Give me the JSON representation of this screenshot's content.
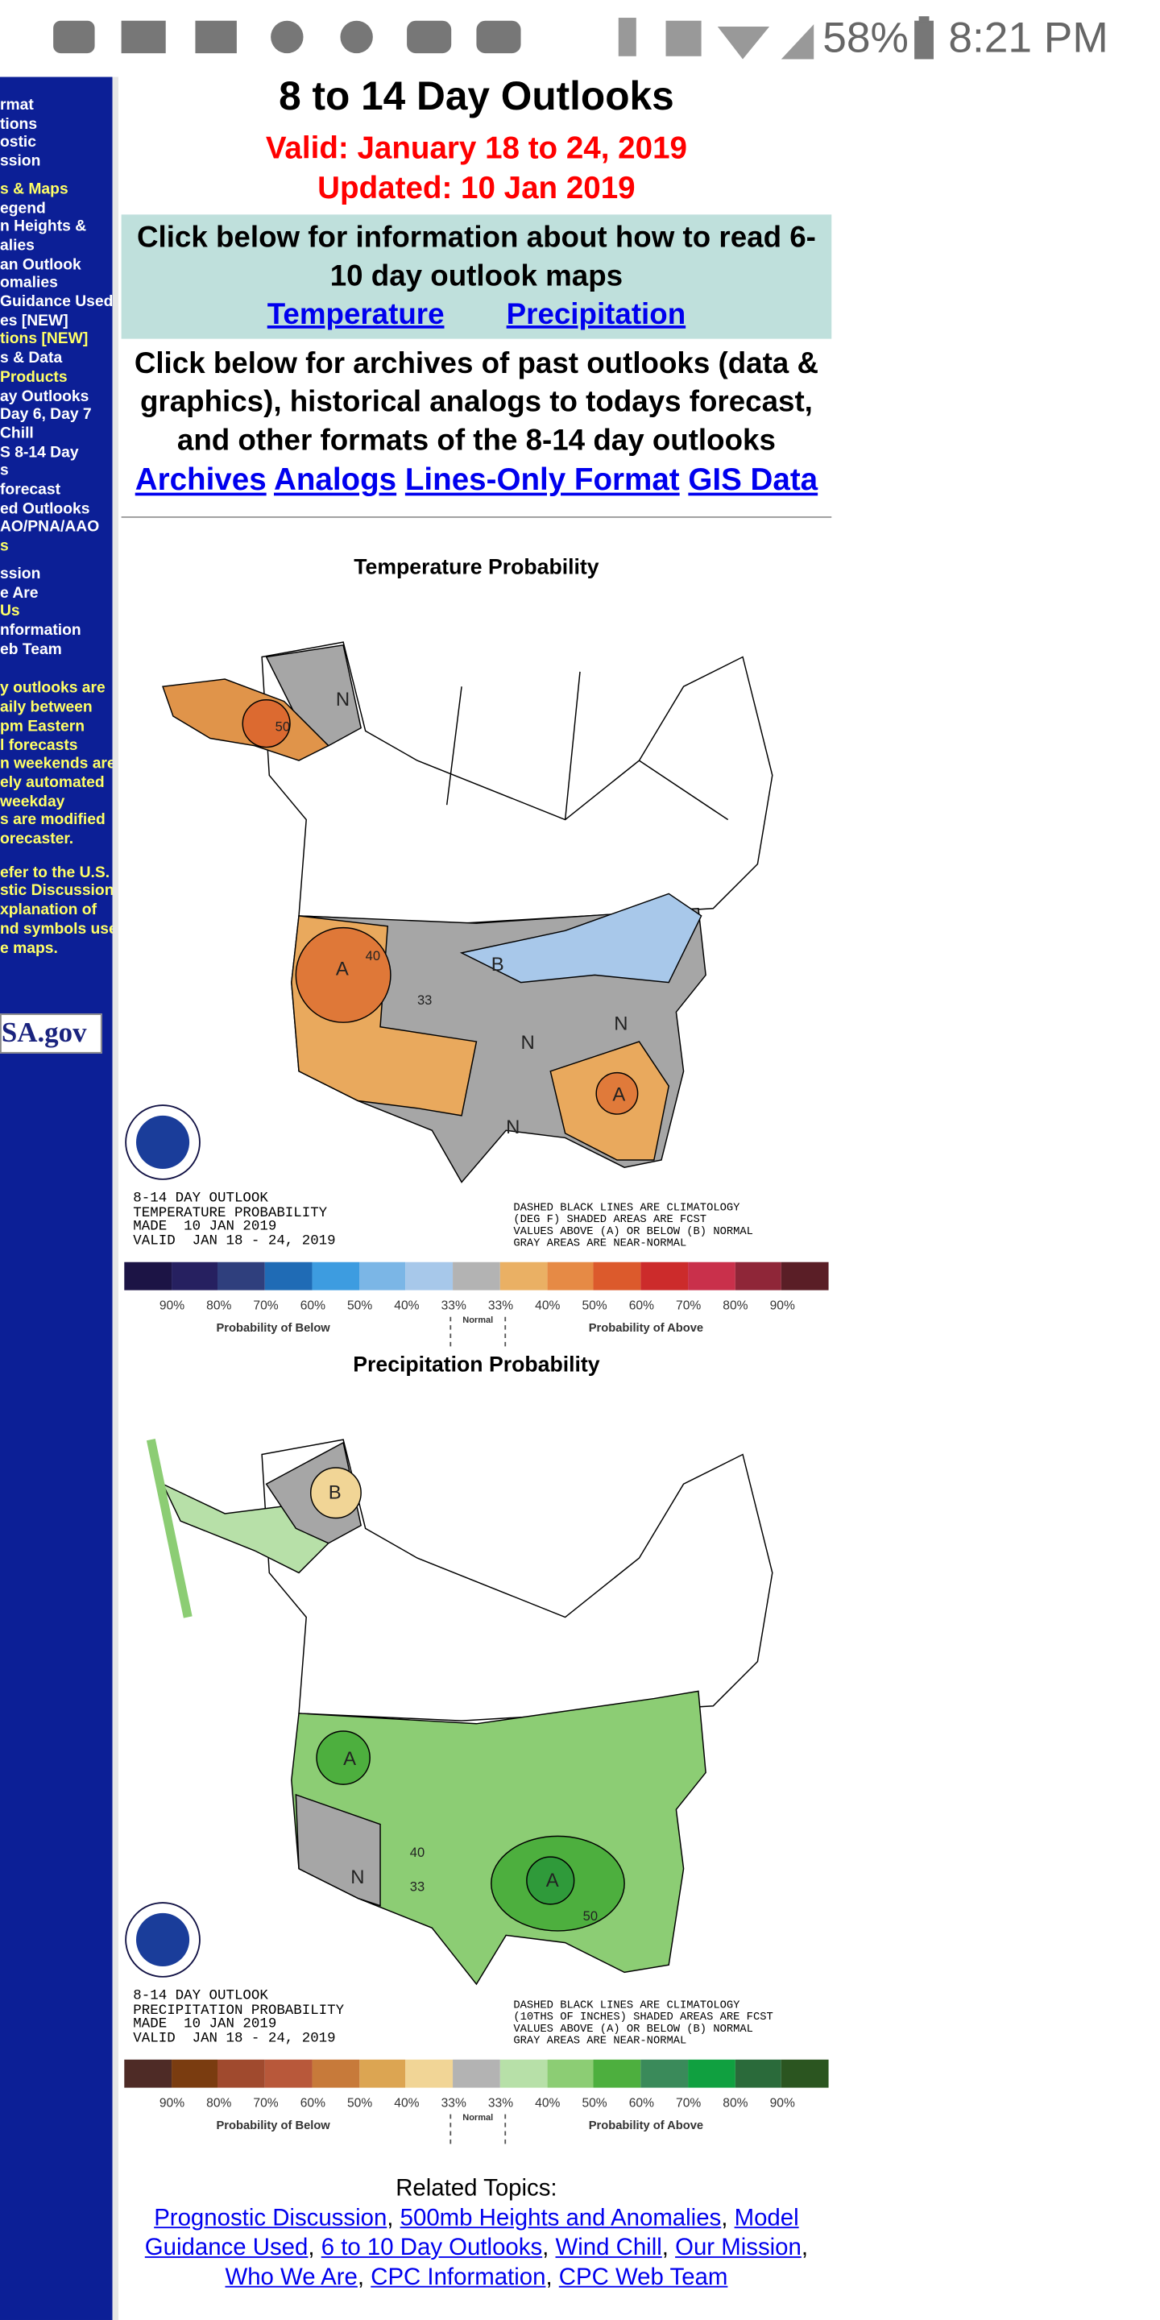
{
  "status_bar": {
    "battery": "58%",
    "time": "8:21 PM"
  },
  "sidebar": {
    "groups": [
      {
        "color": "#ffffff",
        "lines": [
          "rmat",
          "tions",
          "ostic",
          "ssion"
        ]
      },
      {
        "color": "#ffff66",
        "lines": [
          "s & Maps"
        ]
      },
      {
        "color": "#ffffff",
        "lines": [
          "egend",
          "n Heights &",
          "alies",
          "an Outlook",
          "omalies",
          "Guidance Used",
          "es [NEW]"
        ]
      },
      {
        "color": "#ffff66",
        "lines": [
          "tions [NEW]"
        ]
      },
      {
        "color": "#ffffff",
        "lines": [
          "s & Data"
        ]
      },
      {
        "color": "#ffff66",
        "lines": [
          "Products"
        ]
      },
      {
        "color": "#ffffff",
        "lines": [
          "ay Outlooks",
          "Day 6, Day 7",
          "Chill",
          "S 8-14 Day",
          "s",
          "forecast",
          "ed Outlooks",
          "AO/PNA/AAO"
        ]
      },
      {
        "color": "#ffff66",
        "lines": [
          "s"
        ]
      },
      {
        "color": "#ffffff",
        "lines": [
          "ssion",
          "e Are"
        ]
      },
      {
        "color": "#ffff66",
        "lines": [
          "Us"
        ]
      },
      {
        "color": "#ffffff",
        "lines": [
          "nformation",
          "eb Team"
        ]
      },
      {
        "color": "#ffff66",
        "lines": [
          "y outlooks are",
          "aily between",
          "pm Eastern",
          "l forecasts",
          "n weekends are",
          "ely automated",
          "weekday",
          "s are modified",
          "orecaster."
        ]
      },
      {
        "color": "#ffff66",
        "lines": [
          "efer to the U.S.",
          "stic Discussion",
          "xplanation of",
          "nd symbols used",
          "e maps."
        ]
      }
    ],
    "logo": "SA.gov"
  },
  "header": {
    "title": "8 to 14 Day Outlooks",
    "valid": "Valid: January 18 to 24, 2019",
    "updated": "Updated: 10 Jan 2019"
  },
  "info_box": {
    "text": "Click below for information about how to read 6-10 day outlook maps",
    "links": [
      "Temperature",
      "Precipitation"
    ]
  },
  "archives": {
    "text": "Click below for archives of past outlooks (data & graphics), historical analogs to todays forecast, and other formats of the 8-14 day outlooks",
    "links": [
      "Archives",
      "Analogs",
      "Lines-Only Format",
      "GIS Data"
    ]
  },
  "maps": [
    {
      "title": "Temperature Probability",
      "caption": [
        "8-14 DAY OUTLOOK",
        "TEMPERATURE PROBABILITY",
        "MADE  10 JAN 2019",
        "VALID  JAN 18 - 24, 2019"
      ],
      "note": [
        "DASHED BLACK LINES ARE CLIMATOLOGY",
        "(DEG F) SHADED AREAS ARE FCST",
        "VALUES ABOVE (A) OR BELOW (B) NORMAL",
        "GRAY AREAS ARE NEAR-NORMAL"
      ],
      "labels": [
        "A",
        "B",
        "N",
        "N",
        "N",
        "A",
        "N",
        "33",
        "40",
        "50"
      ],
      "legend": {
        "colors": [
          "#1c1445",
          "#262060",
          "#2f3f7d",
          "#1f6bb5",
          "#3d9ce0",
          "#7bb6e6",
          "#a7c8ea",
          "#b3b3b3",
          "#eab064",
          "#e68a45",
          "#dc5a2c",
          "#cc2b2b",
          "#c9304b",
          "#8f2638",
          "#5a1e26"
        ],
        "below_labels": [
          "90%",
          "80%",
          "70%",
          "60%",
          "50%",
          "40%",
          "33%"
        ],
        "above_labels": [
          "33%",
          "40%",
          "50%",
          "60%",
          "70%",
          "80%",
          "90%"
        ],
        "below": "Probability of Below",
        "normal": "Normal",
        "above": "Probability of Above"
      }
    },
    {
      "title": "Precipitation Probability",
      "caption": [
        "8-14 DAY OUTLOOK",
        "PRECIPITATION PROBABILITY",
        "MADE  10 JAN 2019",
        "VALID  JAN 18 - 24, 2019"
      ],
      "note": [
        "DASHED BLACK LINES ARE CLIMATOLOGY",
        "(10THS OF INCHES) SHADED AREAS ARE FCST",
        "VALUES ABOVE (A) OR BELOW (B) NORMAL",
        "GRAY AREAS ARE NEAR-NORMAL"
      ],
      "labels": [
        "B",
        "A",
        "N",
        "A",
        "33",
        "40",
        "50"
      ],
      "legend": {
        "colors": [
          "#4e2b26",
          "#7a3c10",
          "#a04a2e",
          "#b8583a",
          "#c77a3a",
          "#dca552",
          "#f1d596",
          "#b3b3b3",
          "#b7e0a8",
          "#8ccd74",
          "#4daf3e",
          "#3a8a5a",
          "#10a040",
          "#2a6a3a",
          "#2b5520"
        ],
        "below_labels": [
          "90%",
          "80%",
          "70%",
          "60%",
          "50%",
          "40%",
          "33%"
        ],
        "above_labels": [
          "33%",
          "40%",
          "50%",
          "60%",
          "70%",
          "80%",
          "90%"
        ],
        "below": "Probability of Below",
        "normal": "Normal",
        "above": "Probability of Above"
      }
    }
  ],
  "related": {
    "title": "Related Topics:",
    "separator": ", ",
    "links": [
      "Prognostic Discussion",
      "500mb Heights and Anomalies",
      "Model Guidance Used",
      "6 to 10 Day Outlooks",
      "Wind Chill",
      "Our Mission",
      "Who We Are",
      "CPC Information",
      "CPC Web Team"
    ]
  }
}
